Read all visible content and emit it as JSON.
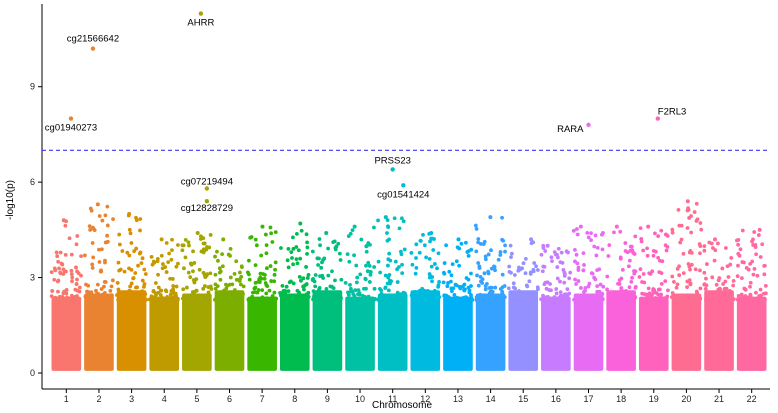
{
  "chart_data": {
    "type": "scatter",
    "title": "",
    "xlabel": "Chromosome",
    "ylabel": "-log10(p)",
    "ylim": [
      0,
      11.6
    ],
    "yticks": [
      "0",
      "3",
      "6",
      "9"
    ],
    "chromosomes": [
      "1",
      "2",
      "3",
      "4",
      "5",
      "6",
      "7",
      "8",
      "9",
      "10",
      "11",
      "12",
      "13",
      "14",
      "15",
      "16",
      "17",
      "18",
      "19",
      "20",
      "21",
      "22"
    ],
    "chromosome_colors": [
      "#f8766d",
      "#ea8331",
      "#d89000",
      "#c09b00",
      "#a3a500",
      "#7cae00",
      "#39b600",
      "#00bb4e",
      "#00bf7d",
      "#00c1a3",
      "#00bfc4",
      "#00bae0",
      "#00b0f6",
      "#35a2ff",
      "#9590ff",
      "#c77cff",
      "#e76bf3",
      "#fa62db",
      "#ff62bc",
      "#ff6c91",
      "#ff6a98",
      "#ff68a1"
    ],
    "threshold": {
      "value": 7.0,
      "color": "#3a3af0",
      "style": "dashed"
    },
    "grid": false,
    "legend": "none",
    "column_peaks": [
      4.8,
      5.3,
      5.0,
      4.2,
      4.4,
      4.2,
      4.6,
      4.7,
      4.4,
      4.6,
      4.9,
      4.4,
      4.2,
      4.9,
      4.2,
      4.0,
      4.6,
      4.6,
      4.6,
      5.4,
      4.2,
      4.5
    ],
    "highlighted_points": [
      {
        "label": "AHRR",
        "chromosome": "5",
        "y": 11.3
      },
      {
        "label": "cg21566642",
        "chromosome": "2",
        "y": 10.2
      },
      {
        "label": "cg01940273",
        "chromosome": "2",
        "y": 8.0
      },
      {
        "label": "F2RL3",
        "chromosome": "19",
        "y": 8.0
      },
      {
        "label": "RARA",
        "chromosome": "17",
        "y": 7.8
      },
      {
        "label": "PRSS23",
        "chromosome": "11",
        "y": 6.4
      },
      {
        "label": "cg01541424",
        "chromosome": "12",
        "y": 5.9
      },
      {
        "label": "cg07219494",
        "chromosome": "5",
        "y": 5.8
      },
      {
        "label": "cg12828729",
        "chromosome": "5",
        "y": 5.4
      }
    ]
  }
}
